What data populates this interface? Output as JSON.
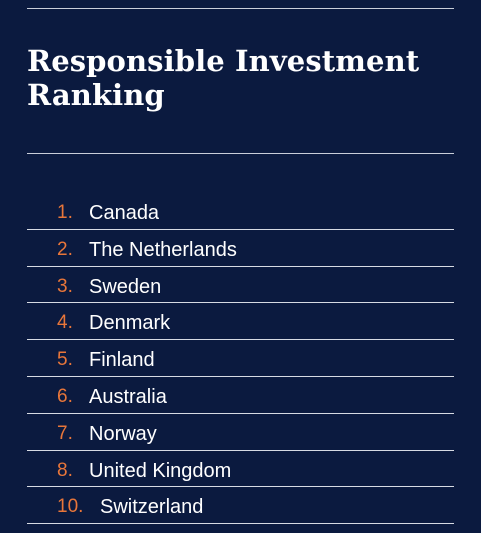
{
  "title": "Responsible Investment Ranking",
  "colors": {
    "background": "#0b1a3f",
    "rank_number": "#e8763a",
    "text": "#ffffff",
    "divider": "#d7dbe3"
  },
  "ranking": [
    {
      "rank": "1.",
      "country": "Canada"
    },
    {
      "rank": "2.",
      "country": "The Netherlands"
    },
    {
      "rank": "3.",
      "country": "Sweden"
    },
    {
      "rank": "4.",
      "country": "Denmark"
    },
    {
      "rank": "5.",
      "country": "Finland"
    },
    {
      "rank": "6.",
      "country": "Australia"
    },
    {
      "rank": "7.",
      "country": "Norway"
    },
    {
      "rank": "8.",
      "country": "United Kingdom"
    },
    {
      "rank": "10.",
      "country": "Switzerland"
    }
  ]
}
